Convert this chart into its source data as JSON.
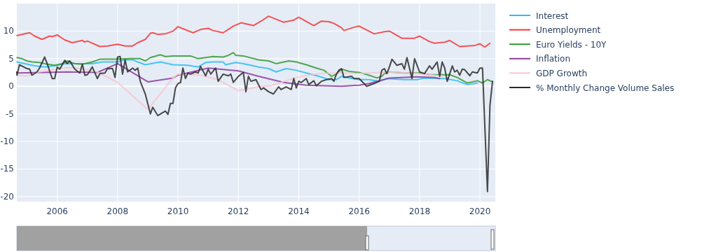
{
  "chart_data": {
    "type": "line",
    "xlim": [
      "2004-08-30",
      "2020-07-05"
    ],
    "xticks": [
      "2006",
      "2008",
      "2010",
      "2012",
      "2014",
      "2016",
      "2018",
      "2020"
    ],
    "ylim": [
      -20.9,
      15
    ],
    "yticks": [
      -20,
      -15,
      -10,
      -5,
      0,
      5,
      10
    ],
    "grid": true,
    "legend": "right",
    "marker": "none",
    "line_style": "solid",
    "series": [
      {
        "name": "Interest",
        "color": "#29bdf5",
        "x": [
          "2004-09",
          "2005-02",
          "2005-04",
          "2005-08",
          "2005-12",
          "2006-04",
          "2006-08",
          "2007-03",
          "2007-07",
          "2008-01",
          "2008-04",
          "2008-07",
          "2008-09",
          "2008-12",
          "2009-06",
          "2009-11",
          "2010-05",
          "2010-09",
          "2010-12",
          "2011-03",
          "2011-07",
          "2011-08",
          "2011-12",
          "2012-03",
          "2012-07",
          "2012-09",
          "2013-01",
          "2013-04",
          "2013-08",
          "2013-12",
          "2014-04",
          "2014-09",
          "2015-01",
          "2015-04",
          "2015-06",
          "2015-09",
          "2016-01",
          "2016-05",
          "2016-09",
          "2016-12",
          "2017-07",
          "2017-12",
          "2018-03",
          "2018-11",
          "2019-04",
          "2019-08",
          "2019-12"
        ],
        "values": [
          4.4,
          3.9,
          3.7,
          3.5,
          3.7,
          4.1,
          4.1,
          4.1,
          4.4,
          4.4,
          4.8,
          4.8,
          4.4,
          3.9,
          4.4,
          3.9,
          3.8,
          3.5,
          4.3,
          4.4,
          4.4,
          3.9,
          4.3,
          4.1,
          3.7,
          3.5,
          3.2,
          2.6,
          3.2,
          2.9,
          2.4,
          1.8,
          1.2,
          1.2,
          1.8,
          1.5,
          1.2,
          1.2,
          0.9,
          1.4,
          1.2,
          1.2,
          1.5,
          1.4,
          1.0,
          0.3,
          0.6
        ]
      },
      {
        "name": "Unemployment",
        "color": "#f53838",
        "x": [
          "2004-09",
          "2005-02",
          "2005-04",
          "2005-07",
          "2005-10",
          "2005-11",
          "2006-01",
          "2006-04",
          "2006-07",
          "2006-11",
          "2006-12",
          "2007-01",
          "2007-06",
          "2007-09",
          "2008-01",
          "2008-04",
          "2008-07",
          "2008-09",
          "2008-12",
          "2009-02",
          "2009-03",
          "2009-05",
          "2009-08",
          "2009-11",
          "2010-01",
          "2010-07",
          "2010-10",
          "2011-01",
          "2011-03",
          "2011-07",
          "2011-11",
          "2012-02",
          "2012-07",
          "2012-10",
          "2013-01",
          "2013-07",
          "2013-11",
          "2014-01",
          "2014-07",
          "2014-10",
          "2015-01",
          "2015-03",
          "2015-06",
          "2015-07",
          "2015-11",
          "2016-01",
          "2016-07",
          "2016-11",
          "2017-01",
          "2017-06",
          "2017-11",
          "2018-01",
          "2018-05",
          "2018-07",
          "2018-11",
          "2019-01",
          "2019-05",
          "2019-11",
          "2020-01",
          "2020-03",
          "2020-05"
        ],
        "values": [
          9.2,
          9.7,
          9.1,
          8.5,
          9.1,
          9.0,
          9.3,
          8.4,
          7.9,
          8.3,
          8.0,
          8.2,
          7.2,
          7.3,
          7.6,
          7.3,
          7.3,
          7.9,
          8.5,
          9.6,
          9.7,
          9.4,
          9.5,
          10.0,
          10.8,
          9.7,
          10.3,
          10.5,
          10.1,
          9.7,
          10.9,
          11.5,
          11.0,
          11.8,
          12.7,
          11.6,
          12.0,
          12.5,
          11.0,
          11.8,
          11.7,
          11.4,
          10.6,
          10.1,
          10.7,
          10.9,
          9.5,
          9.9,
          10.0,
          8.7,
          8.7,
          9.1,
          8.1,
          7.8,
          8.0,
          8.3,
          7.2,
          7.4,
          7.7,
          7.1,
          7.8
        ]
      },
      {
        "name": "Euro Yields - 10Y",
        "color": "#339933",
        "x": [
          "2004-09",
          "2004-11",
          "2005-01",
          "2005-03",
          "2005-06",
          "2005-08",
          "2005-12",
          "2006-03",
          "2006-05",
          "2006-08",
          "2006-11",
          "2007-03",
          "2007-06",
          "2008-01",
          "2008-06",
          "2008-10",
          "2008-12",
          "2009-02",
          "2009-06",
          "2009-08",
          "2009-11",
          "2010-06",
          "2010-09",
          "2011-03",
          "2011-07",
          "2011-09",
          "2011-11",
          "2011-12",
          "2012-03",
          "2012-09",
          "2013-01",
          "2013-04",
          "2013-09",
          "2013-12",
          "2014-04",
          "2014-08",
          "2014-11",
          "2015-02",
          "2015-04",
          "2015-06",
          "2015-09",
          "2016-01",
          "2016-05",
          "2016-08",
          "2016-10",
          "2016-11",
          "2017-01",
          "2017-07",
          "2018-01",
          "2018-05",
          "2019-01",
          "2019-04",
          "2019-08",
          "2019-12",
          "2020-02",
          "2020-04",
          "2020-06"
        ],
        "values": [
          5.2,
          5.0,
          4.6,
          4.4,
          4.3,
          4.1,
          3.8,
          4.1,
          4.6,
          4.1,
          4.0,
          4.4,
          4.9,
          4.9,
          5.0,
          5.0,
          4.6,
          5.2,
          5.7,
          5.4,
          5.5,
          5.5,
          5.0,
          5.4,
          5.3,
          5.6,
          6.1,
          5.6,
          5.5,
          4.8,
          4.6,
          4.1,
          4.6,
          4.4,
          3.9,
          3.3,
          2.9,
          1.8,
          2.2,
          3.1,
          2.7,
          2.5,
          2.0,
          1.5,
          1.8,
          2.3,
          2.6,
          2.4,
          2.4,
          2.1,
          2.1,
          1.6,
          0.6,
          1.0,
          0.6,
          1.2,
          0.8
        ]
      },
      {
        "name": "Inflation",
        "color": "#8e3a9e",
        "x": [
          "2004-09",
          "2005-08",
          "2006-05",
          "2007-05",
          "2008-01",
          "2009-01",
          "2009-11",
          "2010-01",
          "2011-01",
          "2012-01",
          "2012-09",
          "2013-07",
          "2014-04",
          "2015-06",
          "2016-01",
          "2016-05",
          "2017-01",
          "2017-12",
          "2018-07",
          "2018-09"
        ],
        "values": [
          2.4,
          2.5,
          2.6,
          2.5,
          4.1,
          0.8,
          1.5,
          2.0,
          3.3,
          2.8,
          1.8,
          0.7,
          0.2,
          0.0,
          0.2,
          0.5,
          1.5,
          1.7,
          1.6,
          1.4
        ]
      },
      {
        "name": "GDP Growth",
        "color": "#f7c6cf",
        "x": [
          "2004-09",
          "2005-01",
          "2005-06",
          "2006-05",
          "2006-09",
          "2007-05",
          "2008-01",
          "2009-01",
          "2009-11",
          "2010-01",
          "2010-10",
          "2011-05",
          "2012-01",
          "2012-09",
          "2013-02",
          "2013-12",
          "2014-09",
          "2015-06",
          "2016-01",
          "2017-01",
          "2017-12",
          "2018-11"
        ],
        "values": [
          2.0,
          1.9,
          2.6,
          3.4,
          3.3,
          2.6,
          0.7,
          -4.2,
          1.5,
          2.2,
          2.0,
          1.2,
          -0.8,
          -0.1,
          0.1,
          1.6,
          2.3,
          2.4,
          2.3,
          2.6,
          2.3,
          1.8
        ]
      },
      {
        "name": "% Monthly Change Volume Sales",
        "color": "#2a2a2a",
        "x": [
          "2004-08-30",
          "2004-09",
          "2004-10",
          "2005-01",
          "2005-02",
          "2005-03",
          "2005-05",
          "2005-06",
          "2005-08",
          "2005-09",
          "2005-11",
          "2005-12",
          "2006-01",
          "2006-02",
          "2006-04",
          "2006-05",
          "2006-06",
          "2006-08",
          "2006-10",
          "2006-11",
          "2006-12",
          "2007-01",
          "2007-03",
          "2007-05",
          "2007-06",
          "2007-08",
          "2007-09",
          "2007-11",
          "2007-12",
          "2008-01",
          "2008-02",
          "2008-03",
          "2008-04",
          "2008-05",
          "2008-07",
          "2008-08",
          "2008-09",
          "2008-10",
          "2008-12",
          "2009-02",
          "2009-03",
          "2009-05",
          "2009-08",
          "2009-09",
          "2009-10",
          "2009-11",
          "2009-12",
          "2010-01",
          "2010-02",
          "2010-03",
          "2010-04",
          "2010-05",
          "2010-06",
          "2010-08",
          "2010-09",
          "2010-10",
          "2010-12",
          "2011-01",
          "2011-02",
          "2011-04",
          "2011-05",
          "2011-07",
          "2011-09",
          "2011-10",
          "2011-11",
          "2012-01",
          "2012-03",
          "2012-04",
          "2012-05",
          "2012-06",
          "2012-08",
          "2012-10",
          "2012-11",
          "2013-01",
          "2013-03",
          "2013-05",
          "2013-06",
          "2013-08",
          "2013-10",
          "2013-11",
          "2013-12",
          "2014-01",
          "2014-02",
          "2014-04",
          "2014-05",
          "2014-07",
          "2014-08",
          "2014-10",
          "2014-12",
          "2015-02",
          "2015-03",
          "2015-04",
          "2015-05",
          "2015-06",
          "2015-07",
          "2015-10",
          "2015-11",
          "2016-01",
          "2016-04",
          "2016-07",
          "2016-09",
          "2016-10",
          "2016-11",
          "2016-12",
          "2017-01",
          "2017-02",
          "2017-04",
          "2017-06",
          "2017-07",
          "2017-08",
          "2017-10",
          "2017-11",
          "2018-01",
          "2018-03",
          "2018-05",
          "2018-06",
          "2018-08",
          "2018-09",
          "2018-10",
          "2018-11",
          "2018-12",
          "2019-02",
          "2019-03",
          "2019-04",
          "2019-05",
          "2019-06",
          "2019-07",
          "2019-09",
          "2019-10",
          "2019-12",
          "2020-01",
          "2020-02",
          "2020-04",
          "2020-05",
          "2020-06"
        ],
        "values": [
          2.6,
          2.0,
          3.9,
          3.2,
          3.1,
          2.0,
          2.6,
          3.3,
          5.3,
          4.1,
          1.4,
          1.4,
          3.5,
          3.1,
          4.7,
          4.1,
          4.6,
          3.1,
          2.4,
          4.0,
          2.0,
          2.1,
          3.5,
          1.4,
          2.3,
          2.4,
          3.2,
          3.2,
          1.6,
          5.3,
          5.4,
          2.2,
          4.8,
          2.6,
          3.3,
          2.9,
          3.3,
          0.9,
          -1.4,
          -5.0,
          -3.8,
          -5.3,
          -4.5,
          -5.1,
          -3.1,
          -3.1,
          -0.3,
          0.5,
          0.7,
          3.3,
          1.4,
          2.4,
          2.2,
          2.6,
          2.4,
          3.6,
          1.9,
          3.1,
          2.2,
          3.3,
          0.9,
          2.2,
          1.9,
          2.2,
          0.7,
          1.8,
          2.5,
          -1.0,
          1.8,
          0.9,
          1.2,
          -0.6,
          -0.3,
          -1.0,
          -1.4,
          -0.1,
          -0.6,
          -0.1,
          -0.6,
          1.4,
          -0.3,
          0.9,
          0.7,
          1.4,
          0.3,
          1.0,
          0.1,
          0.9,
          1.2,
          1.4,
          0.9,
          2.2,
          2.9,
          3.2,
          1.6,
          1.8,
          1.4,
          1.4,
          0.0,
          0.5,
          0.9,
          2.9,
          3.2,
          2.3,
          3.5,
          4.9,
          3.8,
          4.1,
          3.1,
          5.2,
          1.4,
          5.0,
          2.6,
          2.3,
          3.7,
          3.1,
          4.4,
          1.8,
          4.4,
          3.3,
          0.9,
          3.7,
          2.6,
          2.9,
          2.0,
          3.1,
          3.0,
          1.9,
          2.6,
          2.4,
          3.3,
          3.3,
          -19.1,
          -3.5,
          0.9
        ]
      }
    ]
  }
}
